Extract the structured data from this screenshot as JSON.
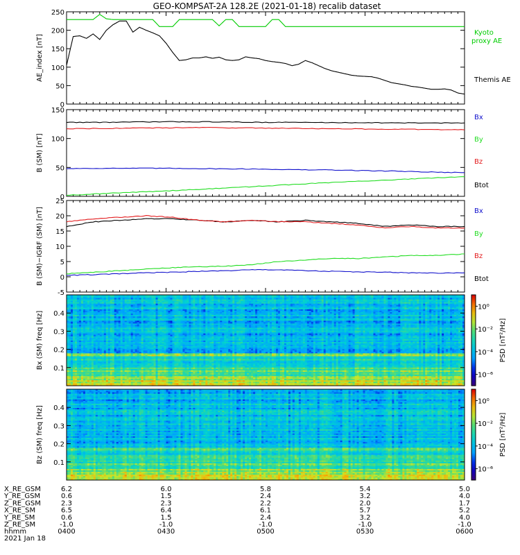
{
  "title": "GEO-KOMPSAT-2A 128.2E (2021-01-18) recalib dataset",
  "colors": {
    "black": "#000000",
    "red": "#e31a1c",
    "green": "#22dd22",
    "blue": "#1010cc",
    "kyoto": "#00cc00"
  },
  "time_axis": {
    "range": [
      "0400",
      "0600"
    ],
    "ticks": [
      "0400",
      "0430",
      "0500",
      "0530",
      "0600"
    ],
    "date_label": "2021 Jan 18",
    "rows": [
      {
        "label": "X_RE_GSM",
        "values": [
          "6.2",
          "6.0",
          "5.8",
          "5.4",
          "5.0"
        ]
      },
      {
        "label": "Y_RE_GSM",
        "values": [
          "0.6",
          "1.5",
          "2.4",
          "3.2",
          "4.0"
        ]
      },
      {
        "label": "Z_RE_GSM",
        "values": [
          "2.3",
          "2.3",
          "2.2",
          "2.0",
          "1.7"
        ]
      },
      {
        "label": "X_RE_SM",
        "values": [
          "6.5",
          "6.4",
          "6.1",
          "5.7",
          "5.2"
        ]
      },
      {
        "label": "Y_RE_SM",
        "values": [
          "0.6",
          "1.5",
          "2.4",
          "3.2",
          "4.0"
        ]
      },
      {
        "label": "Z_RE_SM",
        "values": [
          "-1.0",
          "-1.0",
          "-1.0",
          "-1.0",
          "-1.0"
        ]
      },
      {
        "label": "hhmm",
        "values": [
          "0400",
          "0430",
          "0500",
          "0530",
          "0600"
        ]
      }
    ]
  },
  "chart_data": [
    {
      "type": "line",
      "ylabel": "AE_index [nT]",
      "ylim": [
        0,
        250
      ],
      "yticks": [
        "0",
        "50",
        "100",
        "150",
        "200",
        "250"
      ],
      "x_minutes": [
        0,
        2,
        4,
        6,
        8,
        10,
        12,
        14,
        16,
        18,
        20,
        22,
        24,
        26,
        28,
        30,
        32,
        34,
        36,
        38,
        40,
        42,
        44,
        46,
        48,
        50,
        52,
        54,
        56,
        58,
        60,
        62,
        64,
        66,
        68,
        70,
        72,
        74,
        76,
        78,
        80,
        82,
        84,
        86,
        88,
        90,
        92,
        94,
        96,
        98,
        100,
        102,
        104,
        106,
        108,
        110,
        112,
        114,
        116,
        118,
        120
      ],
      "series": [
        {
          "name": "Kyoto proxy AE",
          "color": "#00cc00",
          "values": [
            229,
            229,
            229,
            229,
            229,
            243,
            231,
            229,
            229,
            229,
            229,
            229,
            229,
            229,
            210,
            210,
            210,
            229,
            229,
            229,
            229,
            229,
            229,
            212,
            229,
            229,
            210,
            210,
            210,
            210,
            210,
            229,
            229,
            210,
            210,
            210,
            210,
            210,
            210,
            210,
            210,
            210,
            210,
            210,
            210,
            210,
            210,
            210,
            210,
            210,
            210,
            210,
            210,
            210,
            210,
            210,
            210,
            210,
            210,
            210,
            210
          ]
        },
        {
          "name": "Themis AE",
          "color": "#000000",
          "values": [
            105,
            183,
            185,
            178,
            190,
            175,
            200,
            215,
            225,
            225,
            195,
            208,
            200,
            193,
            185,
            165,
            140,
            118,
            120,
            125,
            125,
            128,
            124,
            127,
            120,
            118,
            120,
            128,
            125,
            123,
            118,
            115,
            113,
            110,
            104,
            108,
            118,
            112,
            104,
            96,
            90,
            86,
            82,
            78,
            76,
            75,
            74,
            70,
            64,
            58,
            55,
            52,
            48,
            46,
            43,
            40,
            40,
            41,
            38,
            30,
            27
          ]
        }
      ]
    },
    {
      "type": "line",
      "ylabel": "B (SM) [nT]",
      "ylim": [
        0,
        150
      ],
      "yticks": [
        "0",
        "50",
        "100",
        "150"
      ],
      "x_minutes": [
        0,
        10,
        20,
        30,
        40,
        50,
        60,
        70,
        80,
        90,
        100,
        110,
        120
      ],
      "series": [
        {
          "name": "Btot",
          "color": "#000000",
          "values": [
            128,
            128,
            128.5,
            129,
            129,
            128.5,
            128,
            128,
            127.5,
            127.5,
            127,
            127,
            127
          ]
        },
        {
          "name": "Bx",
          "color": "#1010cc",
          "values": [
            48,
            48.5,
            48.5,
            48.5,
            48,
            47.5,
            47,
            46,
            45.5,
            44.5,
            43.5,
            42,
            41
          ]
        },
        {
          "name": "By",
          "color": "#22dd22",
          "values": [
            2,
            4.5,
            7,
            9.5,
            12,
            15,
            18,
            21,
            24,
            26.5,
            29,
            31.5,
            34
          ]
        },
        {
          "name": "Bz",
          "color": "#e31a1c",
          "values": [
            117,
            117.5,
            118,
            118.5,
            119,
            118.5,
            118,
            117.5,
            117,
            116.5,
            116,
            115.5,
            115
          ]
        }
      ],
      "legend": [
        "Bx",
        "By",
        "Bz",
        "Btot"
      ]
    },
    {
      "type": "line",
      "ylabel": "B (SM)−IGRF (SM) [nT]",
      "ylim": [
        -5,
        25
      ],
      "yticks": [
        "-5",
        "0",
        "5",
        "10",
        "15",
        "20",
        "25"
      ],
      "x_minutes": [
        0,
        8,
        16,
        24,
        32,
        40,
        48,
        56,
        64,
        72,
        80,
        88,
        96,
        104,
        112,
        120
      ],
      "series": [
        {
          "name": "Btot",
          "color": "#000000",
          "values": [
            16.5,
            18,
            18.5,
            19,
            19,
            18.5,
            18,
            18.5,
            18,
            18.5,
            18,
            17.5,
            16.5,
            17,
            16.5,
            16.5
          ]
        },
        {
          "name": "Bx",
          "color": "#1010cc",
          "values": [
            0.5,
            0.7,
            1,
            1.3,
            1.5,
            1.8,
            2,
            2.3,
            2.3,
            2,
            1.8,
            1.6,
            1.5,
            1.3,
            1.2,
            1.3
          ]
        },
        {
          "name": "By",
          "color": "#22dd22",
          "values": [
            1,
            1.5,
            2,
            2.5,
            3,
            3.3,
            3.5,
            4,
            5,
            5.5,
            6,
            6,
            6.5,
            7,
            7,
            7.5
          ]
        },
        {
          "name": "Bz",
          "color": "#e31a1c",
          "values": [
            18,
            19,
            19.5,
            20,
            19.5,
            18.5,
            18,
            18.5,
            18,
            18,
            17.5,
            17,
            16,
            16.5,
            16,
            16
          ]
        }
      ],
      "legend": [
        "Bx",
        "By",
        "Bz",
        "Btot"
      ]
    },
    {
      "type": "heatmap",
      "ylabel": "Bx (SM) freq [Hz]",
      "ylim": [
        0,
        0.5
      ],
      "yticks": [
        "0.1",
        "0.2",
        "0.3",
        "0.4"
      ],
      "colorbar": {
        "label": "PSD [nT²/Hz]",
        "ticks": [
          "10⁰",
          "10⁻²",
          "10⁻⁴",
          "10⁻⁶"
        ],
        "log_range": [
          -7,
          1
        ]
      }
    },
    {
      "type": "heatmap",
      "ylabel": "Bz (SM) freq [Hz]",
      "ylim": [
        0,
        0.5
      ],
      "yticks": [
        "0.1",
        "0.2",
        "0.3",
        "0.4"
      ],
      "colorbar": {
        "label": "PSD [nT²/Hz]",
        "ticks": [
          "10⁰",
          "10⁻²",
          "10⁻⁴",
          "10⁻⁶"
        ],
        "log_range": [
          -7,
          1
        ]
      }
    }
  ]
}
